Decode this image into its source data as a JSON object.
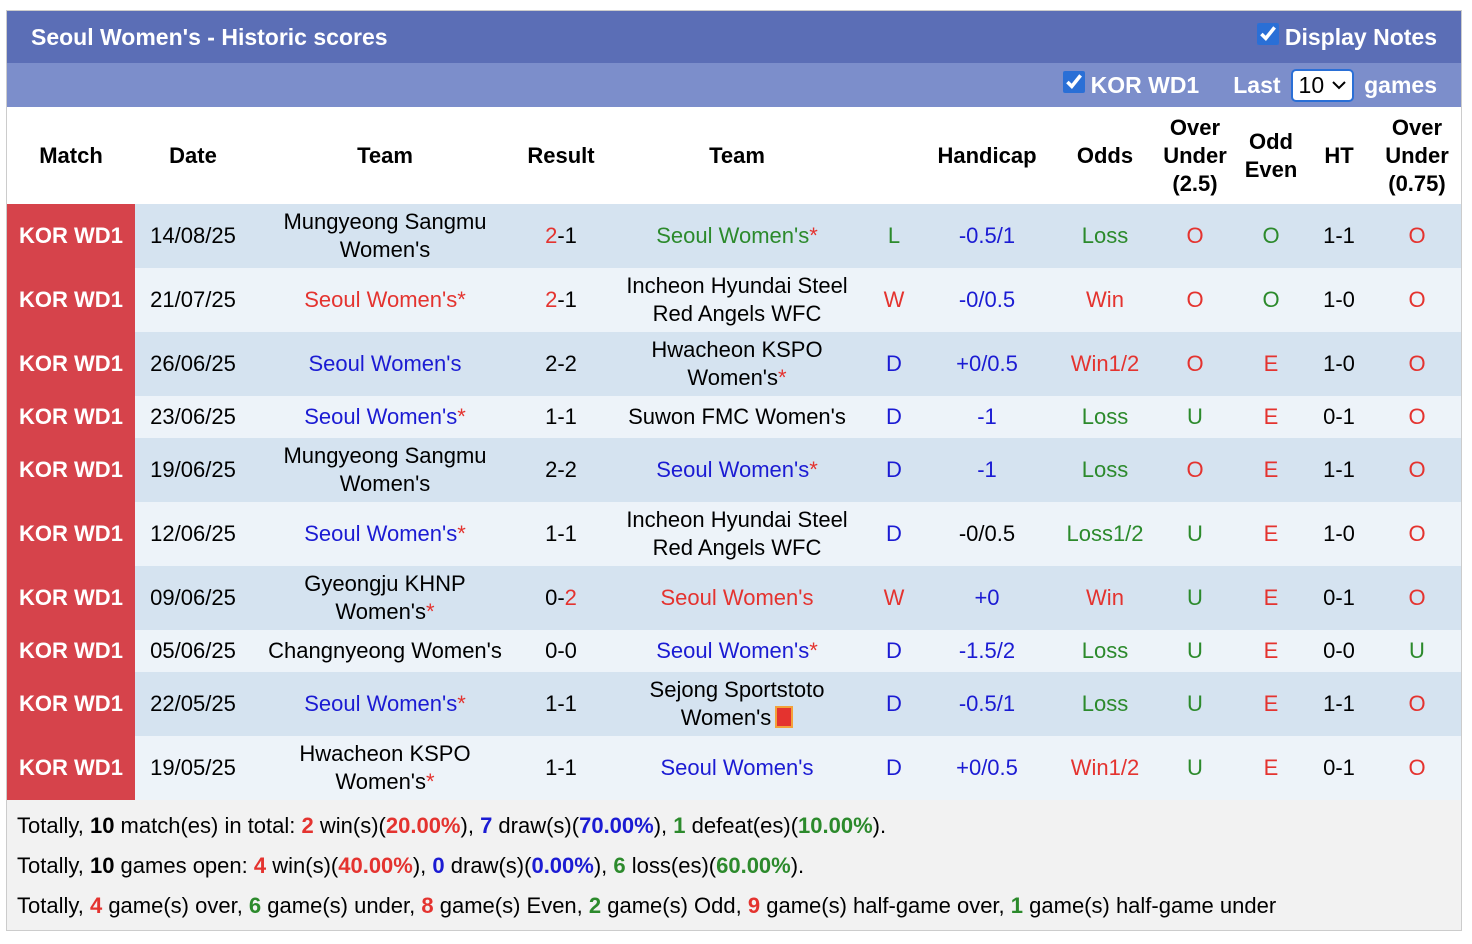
{
  "header": {
    "title": "Seoul Women's - Historic scores",
    "display_notes": "Display Notes",
    "league": "KOR WD1",
    "last": "Last",
    "games_count": "10",
    "games": "games"
  },
  "table": {
    "columns": [
      "Match",
      "Date",
      "Team",
      "Result",
      "Team",
      "",
      "Handicap",
      "Odds",
      "Over Under (2.5)",
      "Odd Even",
      "HT",
      "Over Under (0.75)"
    ],
    "rows": [
      {
        "match": "KOR WD1",
        "date": "14/08/25",
        "home": {
          "name": "Mungyeong Sangmu Women's"
        },
        "result": [
          {
            "text": "2",
            "color": "red"
          },
          {
            "text": "-"
          },
          {
            "text": "1"
          }
        ],
        "away": {
          "name": "Seoul Women's",
          "note": "*",
          "color": "green"
        },
        "outcome": {
          "text": "L",
          "color": "green"
        },
        "handicap": {
          "text": "-0.5/1",
          "color": "blue"
        },
        "odds": {
          "text": "Loss",
          "color": "green"
        },
        "over_under": {
          "text": "O",
          "color": "red"
        },
        "odd_even": {
          "text": "O",
          "color": "green"
        },
        "ht": {
          "text": "1-1"
        },
        "half_over_under": {
          "text": "O",
          "color": "red"
        }
      },
      {
        "match": "KOR WD1",
        "date": "21/07/25",
        "home": {
          "name": "Seoul Women's",
          "note": "*",
          "color": "red"
        },
        "result": [
          {
            "text": "2",
            "color": "red"
          },
          {
            "text": "-"
          },
          {
            "text": "1"
          }
        ],
        "away": {
          "name": "Incheon Hyundai Steel Red Angels WFC"
        },
        "outcome": {
          "text": "W",
          "color": "red"
        },
        "handicap": {
          "text": "-0/0.5",
          "color": "blue"
        },
        "odds": {
          "text": "Win",
          "color": "red"
        },
        "over_under": {
          "text": "O",
          "color": "red"
        },
        "odd_even": {
          "text": "O",
          "color": "green"
        },
        "ht": {
          "text": "1-0"
        },
        "half_over_under": {
          "text": "O",
          "color": "red"
        }
      },
      {
        "match": "KOR WD1",
        "date": "26/06/25",
        "home": {
          "name": "Seoul Women's",
          "color": "blue"
        },
        "result": [
          {
            "text": "2"
          },
          {
            "text": "-"
          },
          {
            "text": "2"
          }
        ],
        "away": {
          "name": "Hwacheon KSPO Women's",
          "note": "*"
        },
        "outcome": {
          "text": "D",
          "color": "blue"
        },
        "handicap": {
          "text": "+0/0.5",
          "color": "blue"
        },
        "odds": {
          "text": "Win1/2",
          "color": "red"
        },
        "over_under": {
          "text": "O",
          "color": "red"
        },
        "odd_even": {
          "text": "E",
          "color": "red"
        },
        "ht": {
          "text": "1-0"
        },
        "half_over_under": {
          "text": "O",
          "color": "red"
        }
      },
      {
        "match": "KOR WD1",
        "date": "23/06/25",
        "home": {
          "name": "Seoul Women's",
          "note": "*",
          "color": "blue"
        },
        "result": [
          {
            "text": "1"
          },
          {
            "text": "-"
          },
          {
            "text": "1"
          }
        ],
        "away": {
          "name": "Suwon FMC Women's"
        },
        "outcome": {
          "text": "D",
          "color": "blue"
        },
        "handicap": {
          "text": "-1",
          "color": "blue"
        },
        "odds": {
          "text": "Loss",
          "color": "green"
        },
        "over_under": {
          "text": "U",
          "color": "green"
        },
        "odd_even": {
          "text": "E",
          "color": "red"
        },
        "ht": {
          "text": "0-1"
        },
        "half_over_under": {
          "text": "O",
          "color": "red"
        }
      },
      {
        "match": "KOR WD1",
        "date": "19/06/25",
        "home": {
          "name": "Mungyeong Sangmu Women's"
        },
        "result": [
          {
            "text": "2"
          },
          {
            "text": "-"
          },
          {
            "text": "2"
          }
        ],
        "away": {
          "name": "Seoul Women's",
          "note": "*",
          "color": "blue"
        },
        "outcome": {
          "text": "D",
          "color": "blue"
        },
        "handicap": {
          "text": "-1",
          "color": "blue"
        },
        "odds": {
          "text": "Loss",
          "color": "green"
        },
        "over_under": {
          "text": "O",
          "color": "red"
        },
        "odd_even": {
          "text": "E",
          "color": "red"
        },
        "ht": {
          "text": "1-1"
        },
        "half_over_under": {
          "text": "O",
          "color": "red"
        }
      },
      {
        "match": "KOR WD1",
        "date": "12/06/25",
        "home": {
          "name": "Seoul Women's",
          "note": "*",
          "color": "blue"
        },
        "result": [
          {
            "text": "1"
          },
          {
            "text": "-"
          },
          {
            "text": "1"
          }
        ],
        "away": {
          "name": "Incheon Hyundai Steel Red Angels WFC"
        },
        "outcome": {
          "text": "D",
          "color": "blue"
        },
        "handicap": {
          "text": "-0/0.5"
        },
        "odds": {
          "text": "Loss1/2",
          "color": "green"
        },
        "over_under": {
          "text": "U",
          "color": "green"
        },
        "odd_even": {
          "text": "E",
          "color": "red"
        },
        "ht": {
          "text": "1-0"
        },
        "half_over_under": {
          "text": "O",
          "color": "red"
        }
      },
      {
        "match": "KOR WD1",
        "date": "09/06/25",
        "home": {
          "name": "Gyeongju KHNP Women's",
          "note": "*"
        },
        "result": [
          {
            "text": "0"
          },
          {
            "text": "-"
          },
          {
            "text": "2",
            "color": "red"
          }
        ],
        "away": {
          "name": "Seoul Women's",
          "color": "red"
        },
        "outcome": {
          "text": "W",
          "color": "red"
        },
        "handicap": {
          "text": "+0",
          "color": "blue"
        },
        "odds": {
          "text": "Win",
          "color": "red"
        },
        "over_under": {
          "text": "U",
          "color": "green"
        },
        "odd_even": {
          "text": "E",
          "color": "red"
        },
        "ht": {
          "text": "0-1"
        },
        "half_over_under": {
          "text": "O",
          "color": "red"
        }
      },
      {
        "match": "KOR WD1",
        "date": "05/06/25",
        "home": {
          "name": "Changnyeong Women's"
        },
        "result": [
          {
            "text": "0"
          },
          {
            "text": "-"
          },
          {
            "text": "0"
          }
        ],
        "away": {
          "name": "Seoul Women's",
          "note": "*",
          "color": "blue"
        },
        "outcome": {
          "text": "D",
          "color": "blue"
        },
        "handicap": {
          "text": "-1.5/2",
          "color": "blue"
        },
        "odds": {
          "text": "Loss",
          "color": "green"
        },
        "over_under": {
          "text": "U",
          "color": "green"
        },
        "odd_even": {
          "text": "E",
          "color": "red"
        },
        "ht": {
          "text": "0-0"
        },
        "half_over_under": {
          "text": "U",
          "color": "green"
        }
      },
      {
        "match": "KOR WD1",
        "date": "22/05/25",
        "home": {
          "name": "Seoul Women's",
          "note": "*",
          "color": "blue"
        },
        "result": [
          {
            "text": "1"
          },
          {
            "text": "-"
          },
          {
            "text": "1"
          }
        ],
        "away": {
          "name": "Sejong Sportstoto Women's",
          "icon": "red-card"
        },
        "outcome": {
          "text": "D",
          "color": "blue"
        },
        "handicap": {
          "text": "-0.5/1",
          "color": "blue"
        },
        "odds": {
          "text": "Loss",
          "color": "green"
        },
        "over_under": {
          "text": "U",
          "color": "green"
        },
        "odd_even": {
          "text": "E",
          "color": "red"
        },
        "ht": {
          "text": "1-1"
        },
        "half_over_under": {
          "text": "O",
          "color": "red"
        }
      },
      {
        "match": "KOR WD1",
        "date": "19/05/25",
        "home": {
          "name": "Hwacheon KSPO Women's",
          "note": "*"
        },
        "result": [
          {
            "text": "1"
          },
          {
            "text": "-"
          },
          {
            "text": "1"
          }
        ],
        "away": {
          "name": "Seoul Women's",
          "color": "blue"
        },
        "outcome": {
          "text": "D",
          "color": "blue"
        },
        "handicap": {
          "text": "+0/0.5",
          "color": "blue"
        },
        "odds": {
          "text": "Win1/2",
          "color": "red"
        },
        "over_under": {
          "text": "U",
          "color": "green"
        },
        "odd_even": {
          "text": "E",
          "color": "red"
        },
        "ht": {
          "text": "0-1"
        },
        "half_over_under": {
          "text": "O",
          "color": "red"
        }
      }
    ]
  },
  "summary": [
    [
      {
        "text": "Totally, "
      },
      {
        "text": "10",
        "color": "black"
      },
      {
        "text": " match(es) in total: "
      },
      {
        "text": "2",
        "color": "red"
      },
      {
        "text": " win(s)("
      },
      {
        "text": "20.00%",
        "color": "red"
      },
      {
        "text": "), "
      },
      {
        "text": "7",
        "color": "blue"
      },
      {
        "text": " draw(s)("
      },
      {
        "text": "70.00%",
        "color": "blue"
      },
      {
        "text": "), "
      },
      {
        "text": "1",
        "color": "green"
      },
      {
        "text": " defeat(es)("
      },
      {
        "text": "10.00%",
        "color": "green"
      },
      {
        "text": ")."
      }
    ],
    [
      {
        "text": "Totally, "
      },
      {
        "text": "10",
        "color": "black"
      },
      {
        "text": " games open: "
      },
      {
        "text": "4",
        "color": "red"
      },
      {
        "text": " win(s)("
      },
      {
        "text": "40.00%",
        "color": "red"
      },
      {
        "text": "), "
      },
      {
        "text": "0",
        "color": "blue"
      },
      {
        "text": " draw(s)("
      },
      {
        "text": "0.00%",
        "color": "blue"
      },
      {
        "text": "), "
      },
      {
        "text": "6",
        "color": "green"
      },
      {
        "text": " loss(es)("
      },
      {
        "text": "60.00%",
        "color": "green"
      },
      {
        "text": ")."
      }
    ],
    [
      {
        "text": "Totally, "
      },
      {
        "text": "4",
        "color": "red"
      },
      {
        "text": " game(s) over, "
      },
      {
        "text": "6",
        "color": "green"
      },
      {
        "text": " game(s) under, "
      },
      {
        "text": "8",
        "color": "red"
      },
      {
        "text": " game(s) Even, "
      },
      {
        "text": "2",
        "color": "green"
      },
      {
        "text": " game(s) Odd, "
      },
      {
        "text": "9",
        "color": "red"
      },
      {
        "text": " game(s) half-game over, "
      },
      {
        "text": "1",
        "color": "green"
      },
      {
        "text": " game(s) half-game under"
      }
    ]
  ]
}
